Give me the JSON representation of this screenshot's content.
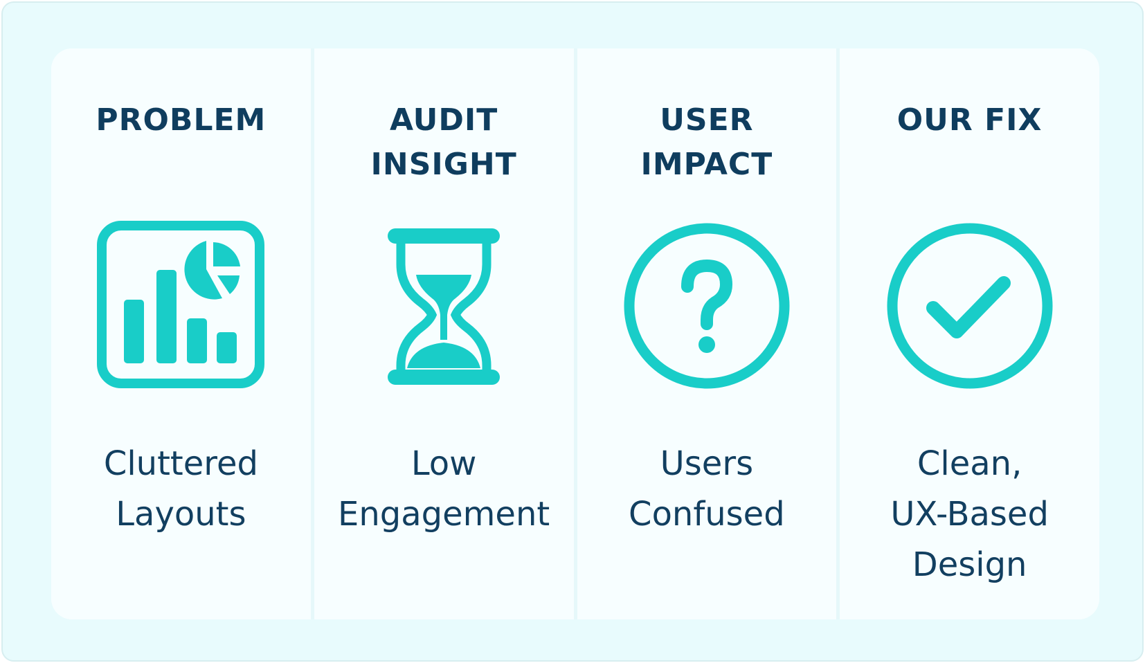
{
  "colors": {
    "accent": "#19cdc8",
    "heading_text": "#0f3d5e",
    "body_text": "#123f60",
    "panel_background": "#f7feff",
    "outer_background": "#e8fbfd"
  },
  "columns": [
    {
      "heading": "PROBLEM",
      "icon": "dashboard-chart-icon",
      "caption": "Cluttered\nLayouts"
    },
    {
      "heading": "AUDIT\nINSIGHT",
      "icon": "hourglass-icon",
      "caption": "Low\nEngagement"
    },
    {
      "heading": "USER\nIMPACT",
      "icon": "question-circle-icon",
      "caption": "Users\nConfused"
    },
    {
      "heading": "OUR FIX",
      "icon": "check-circle-icon",
      "caption": "Clean,\nUX-Based\nDesign"
    }
  ]
}
